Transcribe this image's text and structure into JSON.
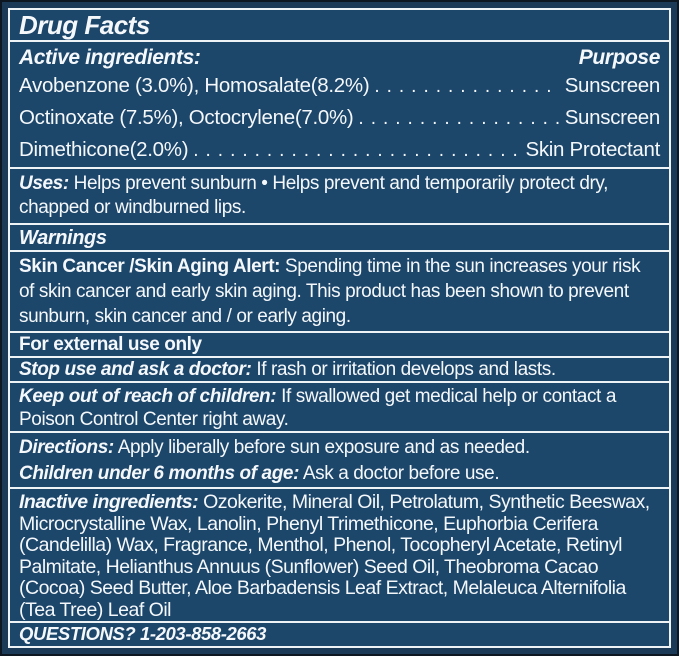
{
  "title": "Drug Facts",
  "active": {
    "heading": "Active ingredients:",
    "purpose_label": "Purpose",
    "rows": [
      {
        "ingredient": "Avobenzone (3.0%), Homosalate(8.2%)",
        "purpose": "Sunscreen"
      },
      {
        "ingredient": "Octinoxate (7.5%), Octocrylene(7.0%)",
        "purpose": "Sunscreen"
      },
      {
        "ingredient": "Dimethicone(2.0%)",
        "purpose": "Skin Protectant"
      }
    ]
  },
  "uses": {
    "label": "Uses:",
    "text": "Helps prevent sunburn • Helps prevent and temporarily protect dry, chapped or windburned lips."
  },
  "warnings": {
    "heading": "Warnings"
  },
  "skin_alert": {
    "label": "Skin Cancer /Skin Aging Alert:",
    "text": "Spending time in the sun increases your risk of skin cancer and early skin aging. This product has been shown to prevent sunburn, skin cancer and / or early aging."
  },
  "external_use": {
    "text": "For external use only"
  },
  "stop_use": {
    "label": "Stop use and ask a doctor:",
    "text": "If rash or irritation develops and lasts."
  },
  "keep_out": {
    "label": "Keep out of reach of children:",
    "text": "If swallowed get medical help or contact a Poison Control Center right away."
  },
  "directions": {
    "label": "Directions:",
    "text": "Apply liberally before sun exposure and as needed."
  },
  "children": {
    "label": "Children under 6 months of age:",
    "text": "Ask a doctor before use."
  },
  "inactive": {
    "label": "Inactive ingredients:",
    "text": "Ozokerite, Mineral Oil, Petrolatum, Synthetic Beeswax, Microcrystalline Wax, Lanolin, Phenyl Trimethicone, Euphorbia Cerifera (Candelilla) Wax, Fragrance, Menthol, Phenol, Tocopheryl Acetate, Retinyl Palmitate, Helianthus Annuus (Sunflower) Seed Oil, Theobroma Cacao (Cocoa) Seed Butter, Aloe Barbadensis Leaf Extract, Melaleuca Alternifolia (Tea Tree) Leaf Oil"
  },
  "questions": {
    "text": "QUESTIONS? 1-203-858-2663"
  },
  "colors": {
    "bg": "#1d466b",
    "frame": "#1b3a57",
    "outer": "#0c1722",
    "line": "#eef3f6",
    "text": "#f4f8fb"
  }
}
